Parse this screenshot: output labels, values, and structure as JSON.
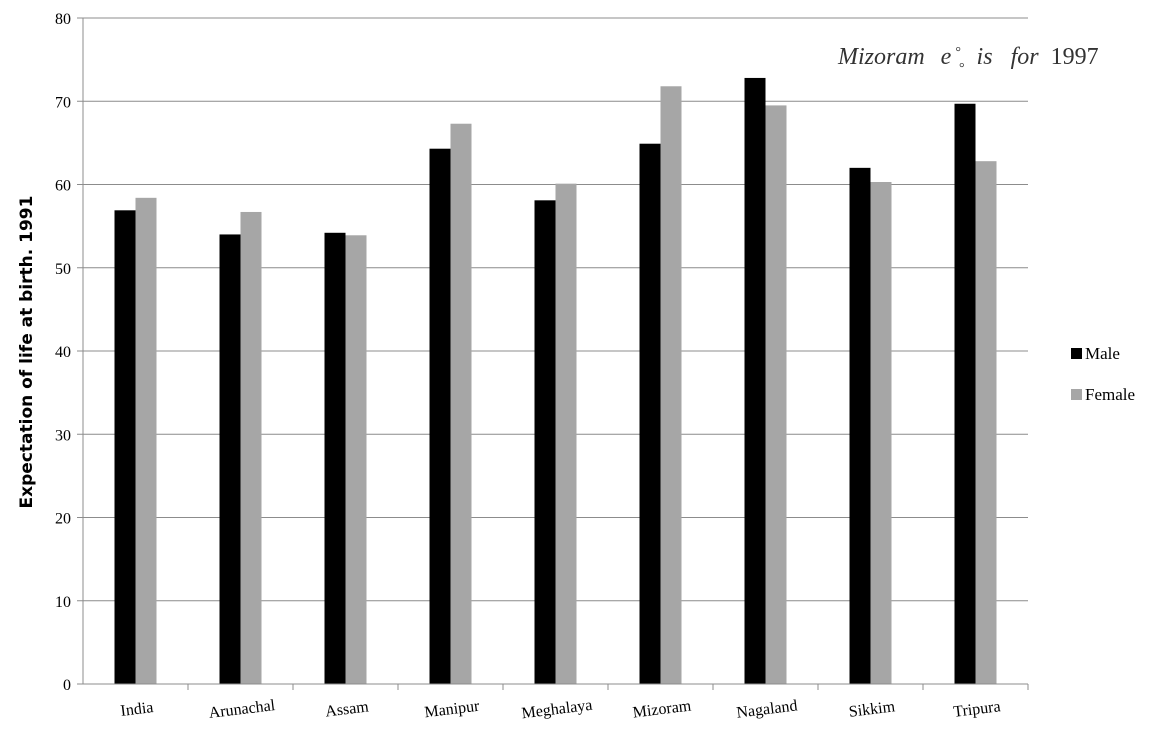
{
  "chart_data": {
    "type": "bar",
    "title": "",
    "xlabel": "",
    "ylabel": "Expectation of life at birth. 1991",
    "ylim": [
      0,
      80
    ],
    "yticks": [
      0,
      10,
      20,
      30,
      40,
      50,
      60,
      70,
      80
    ],
    "grid": true,
    "legend_position": "right",
    "categories": [
      "India",
      "Arunachal",
      "Assam",
      "Manipur",
      "Meghalaya",
      "Mizoram",
      "Nagaland",
      "Sikkim",
      "Tripura"
    ],
    "series": [
      {
        "name": "Male",
        "color": "#000000",
        "values": [
          56.9,
          54.0,
          54.2,
          64.3,
          58.1,
          64.9,
          72.8,
          62.0,
          69.7
        ]
      },
      {
        "name": "Female",
        "color": "#a6a6a6",
        "values": [
          58.4,
          56.7,
          53.9,
          67.3,
          60.1,
          71.8,
          69.5,
          60.3,
          62.8
        ]
      }
    ],
    "annotation": {
      "text_prefix": "Mizoram",
      "symbol": "e",
      "text_middle": "is",
      "text_for": "for",
      "year": "1997"
    }
  }
}
